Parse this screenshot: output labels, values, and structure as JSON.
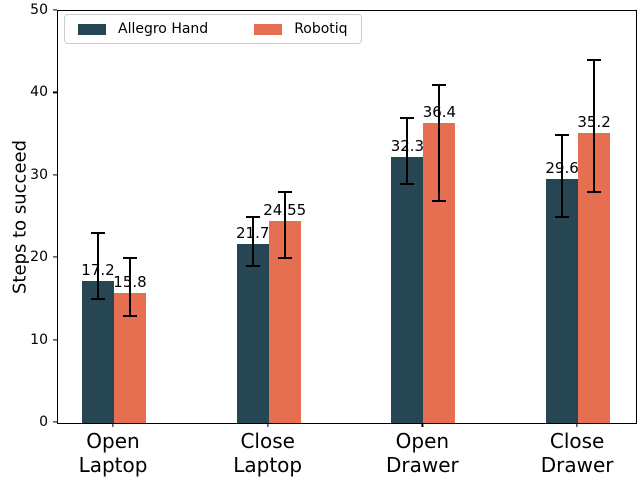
{
  "chart_data": {
    "type": "bar",
    "title": "",
    "xlabel": "",
    "ylabel": "Steps to succeed",
    "ylim": [
      0,
      50
    ],
    "yticks": [
      0,
      10,
      20,
      30,
      40,
      50
    ],
    "grid": false,
    "legend_position": "upper left",
    "categories": [
      "Open\nLaptop",
      "Close\nLaptop",
      "Open\nDrawer",
      "Close\nDrawer"
    ],
    "series": [
      {
        "name": "Allegro Hand",
        "color": "#264653",
        "values": [
          17.2,
          21.7,
          32.3,
          29.6
        ],
        "value_labels": [
          "17.2",
          "21.7",
          "32.3",
          "29.6"
        ],
        "error_low": [
          15,
          19,
          29,
          25
        ],
        "error_high": [
          23,
          25,
          37,
          35
        ]
      },
      {
        "name": "Robotiq",
        "color": "#e76f51",
        "values": [
          15.8,
          24.55,
          36.4,
          35.2
        ],
        "value_labels": [
          "15.8",
          "24.55",
          "36.4",
          "35.2"
        ],
        "error_low": [
          13,
          20,
          27,
          28
        ],
        "error_high": [
          20,
          28,
          41,
          44
        ]
      }
    ]
  }
}
